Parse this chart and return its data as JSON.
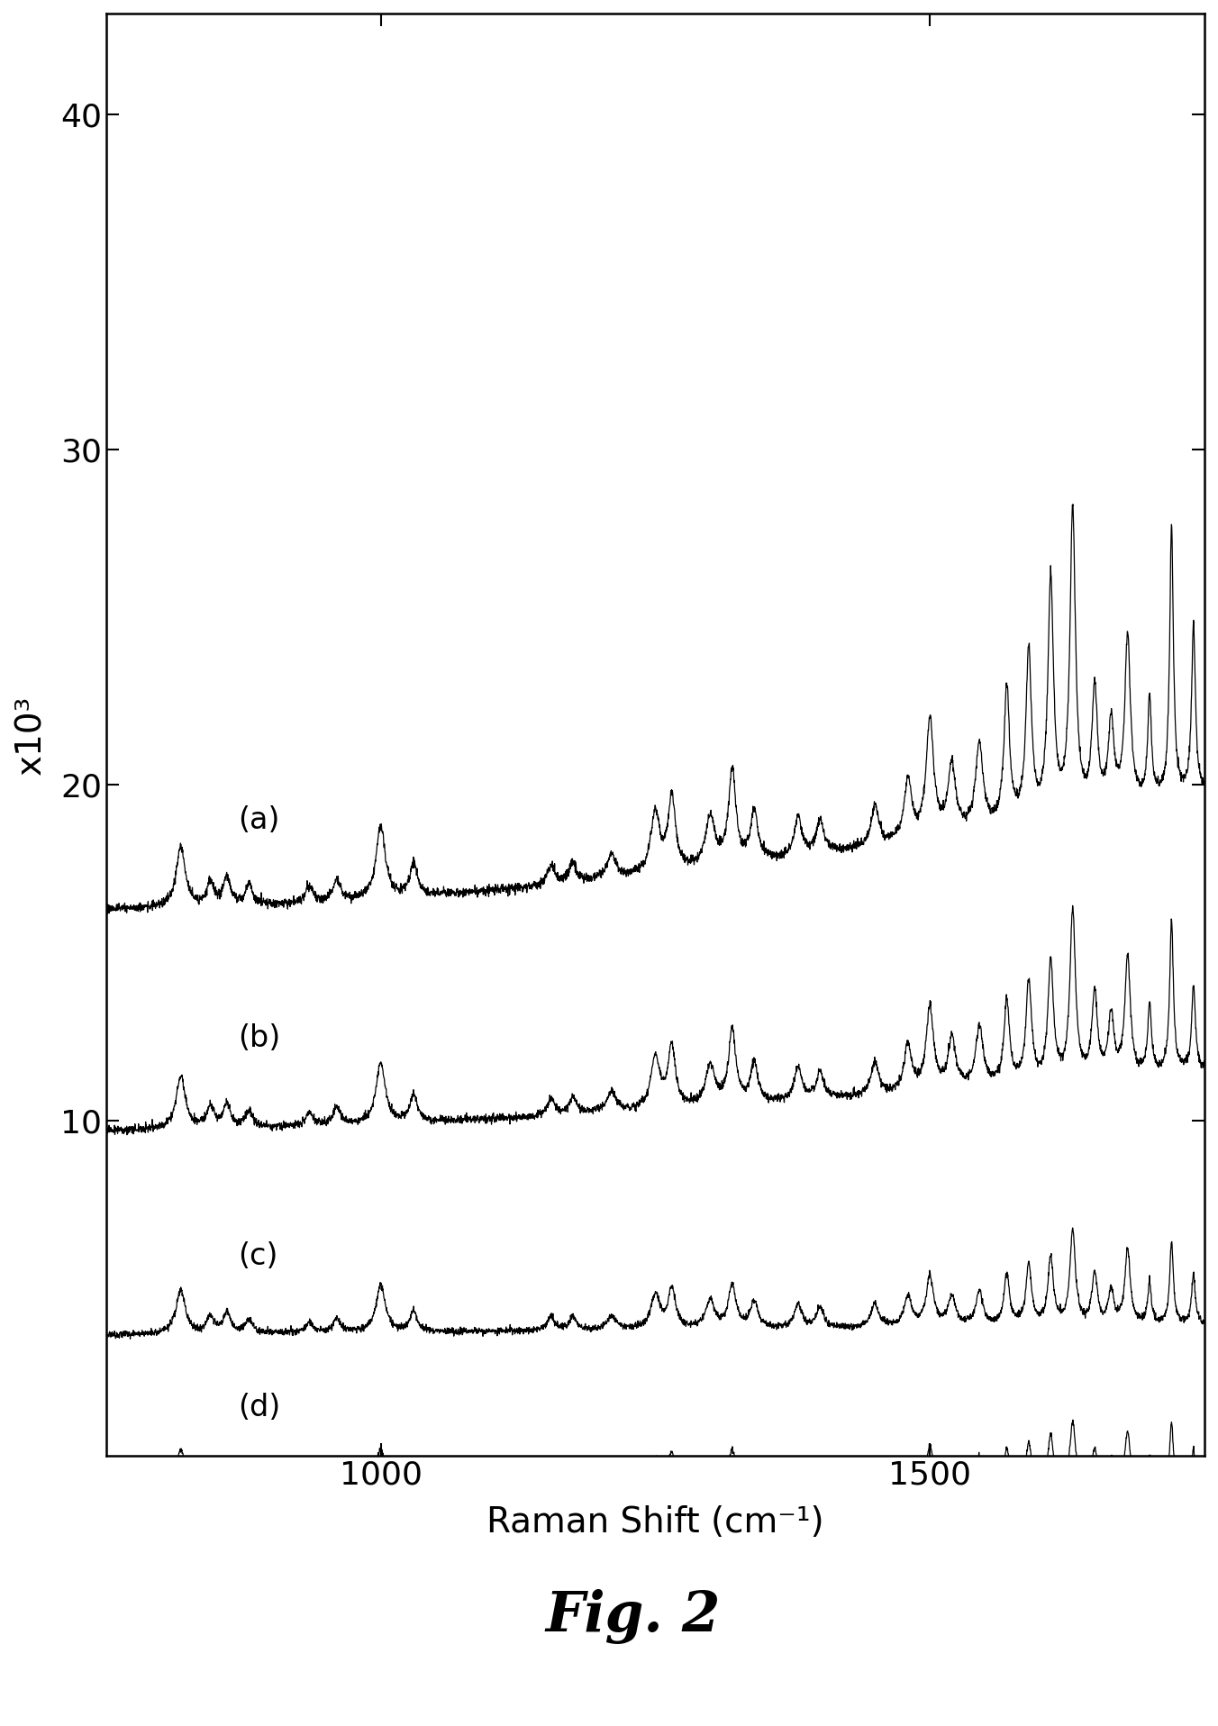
{
  "title": "Fig. 2",
  "xlabel": "Raman Shift (cm⁻¹)",
  "ylabel": "x10³",
  "xlim": [
    750,
    1750
  ],
  "ylim": [
    0,
    43
  ],
  "yticks": [
    10,
    20,
    30,
    40
  ],
  "xticks": [
    1000,
    1500
  ],
  "spectra_labels": [
    "(a)",
    "(b)",
    "(c)",
    "(d)"
  ],
  "offsets": [
    16.0,
    9.5,
    3.5,
    -1.0
  ],
  "background_color": "#ffffff",
  "line_color": "#000000",
  "line_width": 0.9,
  "figsize": [
    13.52,
    19.16
  ],
  "dpi": 100
}
